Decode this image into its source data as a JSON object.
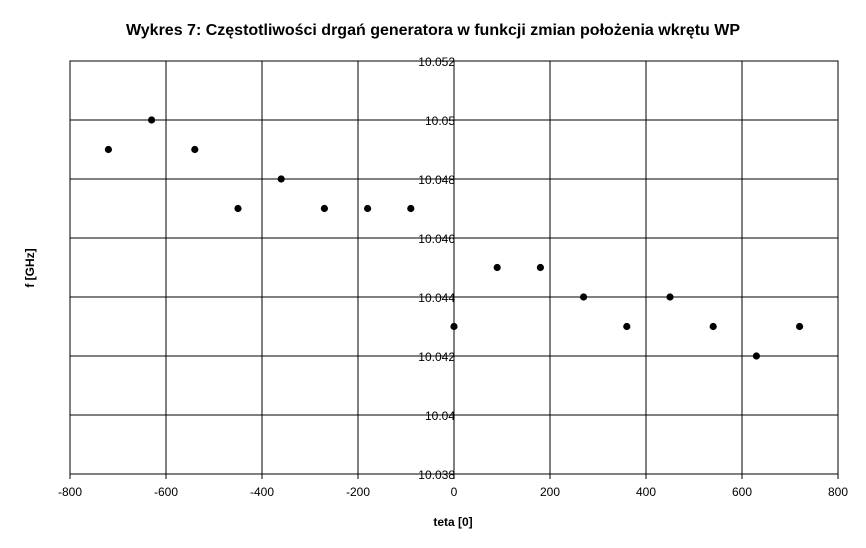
{
  "chart_data": {
    "type": "scatter",
    "title": "Wykres 7: Częstotliwości drgań generatora w funkcji zmian położenia wkrętu WP",
    "xlabel": "teta [0]",
    "ylabel": "f [GHz]",
    "xlim": [
      -800,
      800
    ],
    "ylim": [
      10.038,
      10.052
    ],
    "x_ticks": [
      "-800",
      "-600",
      "-400",
      "-200",
      "0",
      "200",
      "400",
      "600",
      "800"
    ],
    "x_tick_values": [
      -800,
      -600,
      -400,
      -200,
      0,
      200,
      400,
      600,
      800
    ],
    "y_ticks": [
      "10.038",
      "10.04",
      "10.042",
      "10.044",
      "10.046",
      "10.048",
      "10.05",
      "10.052"
    ],
    "y_tick_values": [
      10.038,
      10.04,
      10.042,
      10.044,
      10.046,
      10.048,
      10.05,
      10.052
    ],
    "grid": true,
    "series": [
      {
        "color": "#000000",
        "marker": "circle",
        "points": [
          {
            "x": -720,
            "y": 10.049
          },
          {
            "x": -630,
            "y": 10.05
          },
          {
            "x": -540,
            "y": 10.049
          },
          {
            "x": -450,
            "y": 10.047
          },
          {
            "x": -360,
            "y": 10.048
          },
          {
            "x": -270,
            "y": 10.047
          },
          {
            "x": -180,
            "y": 10.047
          },
          {
            "x": -90,
            "y": 10.047
          },
          {
            "x": 0,
            "y": 10.043
          },
          {
            "x": 90,
            "y": 10.045
          },
          {
            "x": 180,
            "y": 10.045
          },
          {
            "x": 270,
            "y": 10.044
          },
          {
            "x": 360,
            "y": 10.043
          },
          {
            "x": 450,
            "y": 10.044
          },
          {
            "x": 540,
            "y": 10.043
          },
          {
            "x": 630,
            "y": 10.042
          },
          {
            "x": 720,
            "y": 10.043
          }
        ]
      }
    ]
  }
}
